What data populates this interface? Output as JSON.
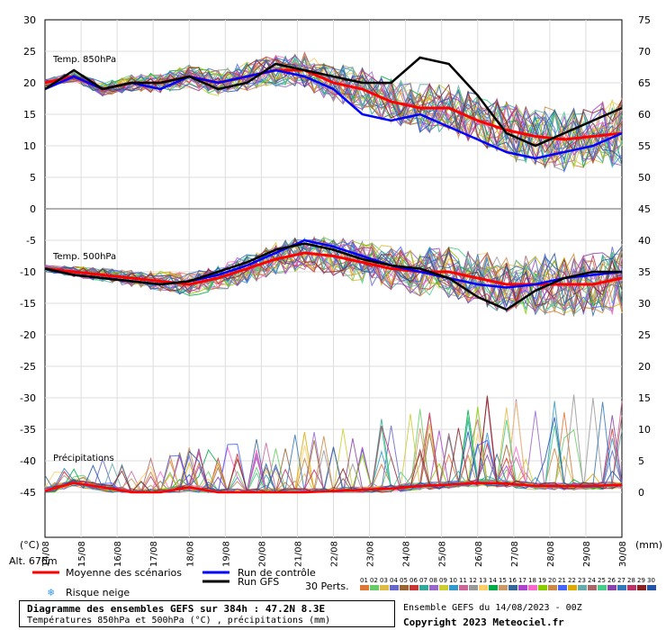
{
  "chart_data": {
    "type": "line",
    "title": "Diagramme des ensembles GEFS sur 384h : 47.2N 8.3E",
    "subtitle": "Températures 850hPa et 500hPa (°C) , précipitations (mm)",
    "run_info": "Ensemble GEFS du 14/08/2023 - 00Z",
    "copyright": "Copyright 2023 Meteociel.fr",
    "altitude": "Alt. 676m",
    "left_axis_unit": "(°C)",
    "right_axis_unit": "(mm)",
    "left_ticks": [
      30,
      25,
      20,
      15,
      10,
      5,
      0,
      -5,
      -10,
      -15,
      -20,
      -25,
      -30,
      -35,
      -40,
      -45
    ],
    "right_ticks": [
      75,
      70,
      65,
      60,
      55,
      50,
      45,
      40,
      35,
      30,
      25,
      20,
      15,
      10,
      5,
      0
    ],
    "x_labels": [
      "14/08",
      "15/08",
      "16/08",
      "17/08",
      "18/08",
      "19/08",
      "20/08",
      "21/08",
      "22/08",
      "23/08",
      "24/08",
      "25/08",
      "26/08",
      "27/08",
      "28/08",
      "29/08",
      "30/08"
    ],
    "panels": [
      {
        "label": "Temp. 850hPa",
        "ylim": [
          0,
          30
        ]
      },
      {
        "label": "Temp. 500hPa",
        "ylim": [
          -45,
          0
        ]
      },
      {
        "label": "Précipitations",
        "ylim": [
          0,
          30
        ]
      }
    ],
    "legend": {
      "mean": "Moyenne des scénarios",
      "control": "Run de contrôle",
      "gfs": "Run GFS",
      "snow": "Risque neige",
      "perts": "30 Perts.",
      "mean_color": "#ff0000",
      "control_color": "#0000ff",
      "gfs_color": "#000000"
    },
    "perturbations": [
      {
        "id": "01",
        "color": "#dd7733"
      },
      {
        "id": "02",
        "color": "#66cc66"
      },
      {
        "id": "03",
        "color": "#ddbb44"
      },
      {
        "id": "04",
        "color": "#6666cc"
      },
      {
        "id": "05",
        "color": "#996633"
      },
      {
        "id": "06",
        "color": "#cc3333"
      },
      {
        "id": "07",
        "color": "#33aa99"
      },
      {
        "id": "08",
        "color": "#9966cc"
      },
      {
        "id": "09",
        "color": "#cccc33"
      },
      {
        "id": "10",
        "color": "#3399cc"
      },
      {
        "id": "11",
        "color": "#cc6699"
      },
      {
        "id": "12",
        "color": "#999999"
      },
      {
        "id": "13",
        "color": "#ffcc66"
      },
      {
        "id": "14",
        "color": "#00aa44"
      },
      {
        "id": "15",
        "color": "#cc9966"
      },
      {
        "id": "16",
        "color": "#336699"
      },
      {
        "id": "17",
        "color": "#aa44cc"
      },
      {
        "id": "18",
        "color": "#ff66cc"
      },
      {
        "id": "19",
        "color": "#88cc00"
      },
      {
        "id": "20",
        "color": "#cc8844"
      },
      {
        "id": "21",
        "color": "#4466ff"
      },
      {
        "id": "22",
        "color": "#ddaa00"
      },
      {
        "id": "23",
        "color": "#66aaaa"
      },
      {
        "id": "24",
        "color": "#aa6666"
      },
      {
        "id": "25",
        "color": "#44cc88"
      },
      {
        "id": "26",
        "color": "#8844aa"
      },
      {
        "id": "27",
        "color": "#3377bb"
      },
      {
        "id": "28",
        "color": "#bb3366"
      },
      {
        "id": "29",
        "color": "#882222"
      },
      {
        "id": "30",
        "color": "#2255aa"
      }
    ],
    "series": [
      {
        "name": "Moyenne 850hPa",
        "panel": 0,
        "values": [
          20,
          21,
          19,
          20,
          20,
          21,
          20,
          21,
          22,
          22,
          20,
          19,
          17,
          16,
          16,
          14,
          12.5,
          11.5,
          11,
          11.5,
          12
        ]
      },
      {
        "name": "Contrôle 850hPa",
        "panel": 0,
        "values": [
          19,
          21,
          19,
          20,
          19,
          21,
          20,
          21,
          22,
          21,
          19,
          15,
          14,
          15,
          13,
          11,
          9,
          8,
          9,
          10,
          12
        ]
      },
      {
        "name": "GFS 850hPa",
        "panel": 0,
        "values": [
          19,
          22,
          19,
          20,
          20,
          21,
          19,
          20,
          23,
          22,
          21,
          20,
          20,
          24,
          23,
          18,
          12,
          10,
          12,
          14,
          16
        ]
      },
      {
        "name": "Moyenne 500hPa",
        "panel": 1,
        "values": [
          -9.5,
          -10,
          -10.5,
          -11,
          -11.5,
          -12,
          -11,
          -9.5,
          -8,
          -7,
          -7.5,
          -8.5,
          -9.5,
          -10,
          -10,
          -11,
          -12,
          -12,
          -12,
          -12,
          -11
        ]
      },
      {
        "name": "Contrôle 500hPa",
        "panel": 1,
        "values": [
          -9.5,
          -10.5,
          -11,
          -11.5,
          -12,
          -11.5,
          -10.5,
          -9,
          -7,
          -5,
          -6,
          -7.5,
          -9,
          -10,
          -11,
          -12,
          -12.5,
          -12,
          -11,
          -10.5,
          -10
        ]
      },
      {
        "name": "GFS 500hPa",
        "panel": 1,
        "values": [
          -9.5,
          -10.5,
          -11,
          -11.5,
          -12,
          -11.5,
          -10,
          -8.5,
          -6.5,
          -5.5,
          -6.5,
          -8,
          -9,
          -9.5,
          -11,
          -14,
          -16,
          -13,
          -11,
          -10,
          -10
        ]
      },
      {
        "name": "Moyenne précipitations",
        "panel": 2,
        "values": [
          0.2,
          1.5,
          0.8,
          0,
          0,
          0.8,
          0,
          0,
          0,
          0,
          0.2,
          0.4,
          0.6,
          1,
          1.2,
          1.5,
          1.4,
          1,
          1,
          1,
          1.2
        ]
      }
    ]
  }
}
